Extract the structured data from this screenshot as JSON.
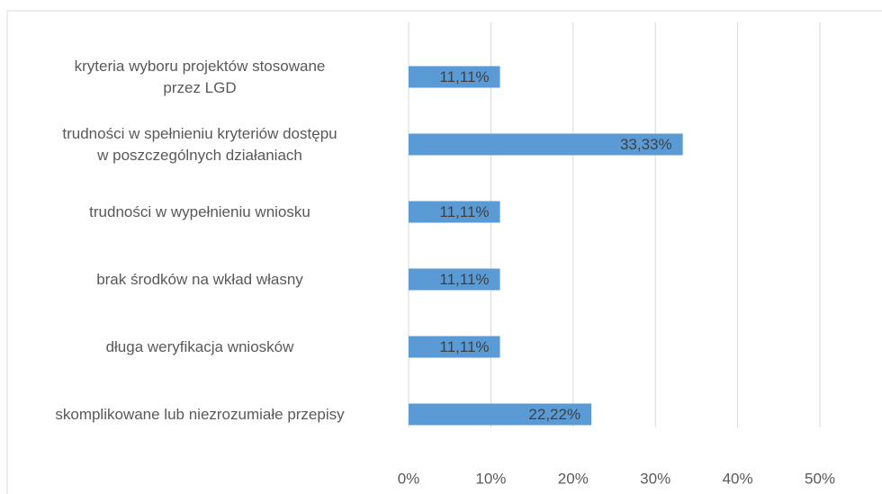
{
  "chart_data": {
    "type": "bar",
    "orientation": "horizontal",
    "categories": [
      "kryteria wyboru projektów stosowane\nprzez LGD",
      "trudności w spełnieniu kryteriów dostępu\nw poszczególnych działaniach",
      "trudności w wypełnieniu wniosku",
      "brak środków na wkład własny",
      "długa weryfikacja wniosków",
      "skomplikowane lub niezrozumiałe przepisy"
    ],
    "values": [
      11.11,
      33.33,
      11.11,
      11.11,
      11.11,
      22.22
    ],
    "value_labels": [
      "11,11%",
      "33,33%",
      "11,11%",
      "11,11%",
      "11,11%",
      "22,22%"
    ],
    "color": "#5b9bd5",
    "xlim": [
      0,
      50
    ],
    "xticks": [
      {
        "value": 0,
        "label": "0%"
      },
      {
        "value": 10,
        "label": "10%"
      },
      {
        "value": 20,
        "label": "20%"
      },
      {
        "value": 30,
        "label": "30%"
      },
      {
        "value": 40,
        "label": "40%"
      },
      {
        "value": 50,
        "label": "50%"
      }
    ],
    "grid": true
  }
}
